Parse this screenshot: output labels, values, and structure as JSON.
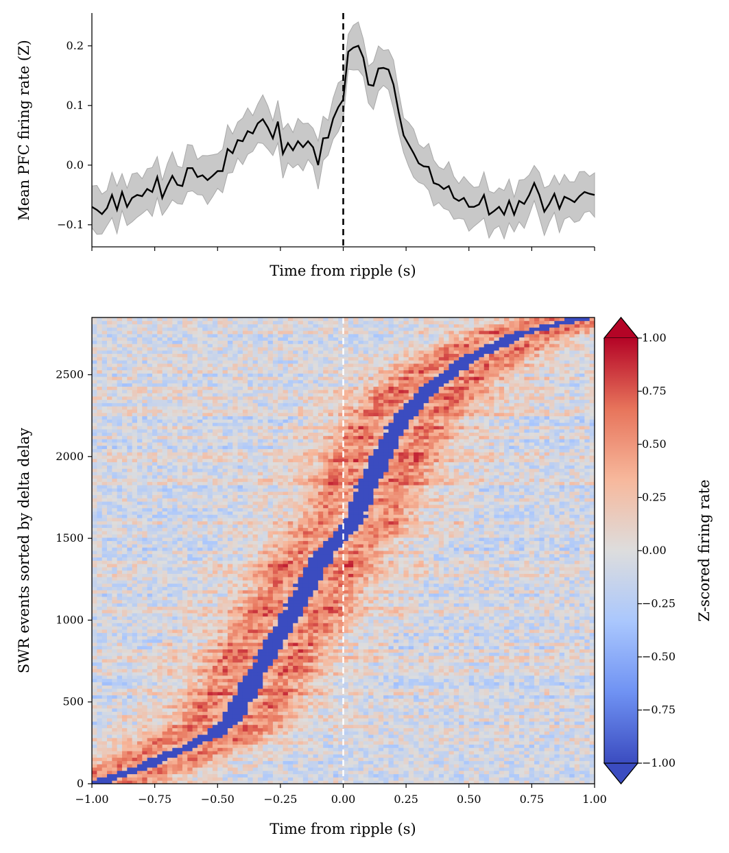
{
  "chart_data": [
    {
      "type": "line",
      "xlabel": "Time from ripple (s)",
      "ylabel": "Mean PFC firing rate (Z)",
      "xlim": [
        -1.0,
        1.0
      ],
      "ylim": [
        -0.137,
        0.255
      ],
      "x_ticks": [
        -1.0,
        -0.75,
        -0.5,
        -0.25,
        0.0,
        0.25,
        0.5,
        0.75,
        1.0
      ],
      "x_tick_labels_visible": false,
      "y_ticks": [
        -0.1,
        0.0,
        0.1,
        0.2
      ],
      "y_tick_labels": [
        "−0.1",
        "0.0",
        "0.1",
        "0.2"
      ],
      "marker_line": {
        "x": 0.0,
        "style": "dashed",
        "color": "#000000"
      },
      "line_color": "#000000",
      "band_color": "#c8c8c8",
      "band_half_width": 0.035,
      "series": [
        {
          "name": "mean",
          "x": [
            -1.0,
            -0.98,
            -0.96,
            -0.94,
            -0.92,
            -0.9,
            -0.88,
            -0.86,
            -0.84,
            -0.82,
            -0.8,
            -0.78,
            -0.76,
            -0.74,
            -0.72,
            -0.7,
            -0.68,
            -0.66,
            -0.64,
            -0.62,
            -0.6,
            -0.58,
            -0.56,
            -0.54,
            -0.52,
            -0.5,
            -0.48,
            -0.46,
            -0.44,
            -0.42,
            -0.4,
            -0.38,
            -0.36,
            -0.34,
            -0.32,
            -0.3,
            -0.28,
            -0.26,
            -0.24,
            -0.22,
            -0.2,
            -0.18,
            -0.16,
            -0.14,
            -0.12,
            -0.1,
            -0.08,
            -0.06,
            -0.04,
            -0.02,
            0.0,
            0.02,
            0.04,
            0.06,
            0.08,
            0.1,
            0.12,
            0.14,
            0.16,
            0.18,
            0.2,
            0.22,
            0.24,
            0.26,
            0.28,
            0.3,
            0.32,
            0.34,
            0.36,
            0.38,
            0.4,
            0.42,
            0.44,
            0.46,
            0.48,
            0.5,
            0.52,
            0.54,
            0.56,
            0.58,
            0.6,
            0.62,
            0.64,
            0.66,
            0.68,
            0.7,
            0.72,
            0.74,
            0.76,
            0.78,
            0.8,
            0.82,
            0.84,
            0.86,
            0.88,
            0.9,
            0.92,
            0.94,
            0.96,
            0.98,
            1.0
          ],
          "y": [
            -0.07,
            -0.075,
            -0.082,
            -0.072,
            -0.05,
            -0.075,
            -0.045,
            -0.07,
            -0.055,
            -0.05,
            -0.052,
            -0.04,
            -0.045,
            -0.02,
            -0.055,
            -0.035,
            -0.018,
            -0.033,
            -0.035,
            -0.005,
            -0.005,
            -0.02,
            -0.017,
            -0.025,
            -0.018,
            -0.01,
            -0.01,
            0.027,
            0.02,
            0.042,
            0.04,
            0.057,
            0.053,
            0.07,
            0.077,
            0.063,
            0.045,
            0.073,
            0.019,
            0.037,
            0.025,
            0.04,
            0.03,
            0.04,
            0.03,
            0.0,
            0.045,
            0.046,
            0.078,
            0.097,
            0.11,
            0.19,
            0.197,
            0.2,
            0.18,
            0.135,
            0.133,
            0.162,
            0.163,
            0.16,
            0.135,
            0.09,
            0.05,
            0.035,
            0.02,
            0.003,
            -0.002,
            -0.003,
            -0.03,
            -0.033,
            -0.04,
            -0.035,
            -0.055,
            -0.06,
            -0.055,
            -0.07,
            -0.07,
            -0.066,
            -0.05,
            -0.083,
            -0.077,
            -0.07,
            -0.083,
            -0.06,
            -0.083,
            -0.06,
            -0.065,
            -0.05,
            -0.03,
            -0.05,
            -0.078,
            -0.065,
            -0.048,
            -0.073,
            -0.053,
            -0.057,
            -0.062,
            -0.052,
            -0.045,
            -0.048,
            -0.05
          ]
        }
      ]
    },
    {
      "type": "heatmap",
      "xlabel": "Time from ripple (s)",
      "ylabel": "SWR events sorted by delta delay",
      "xlim": [
        -1.0,
        1.0
      ],
      "ylim": [
        0,
        2850
      ],
      "x_ticks": [
        -1.0,
        -0.75,
        -0.5,
        -0.25,
        0.0,
        0.25,
        0.5,
        0.75,
        1.0
      ],
      "x_tick_labels": [
        "−1.00",
        "−0.75",
        "−0.50",
        "−0.25",
        "0.00",
        "0.25",
        "0.50",
        "0.75",
        "1.00"
      ],
      "y_ticks": [
        0,
        500,
        1000,
        1500,
        2000,
        2500
      ],
      "y_tick_labels": [
        "0",
        "500",
        "1000",
        "1500",
        "2000",
        "2500"
      ],
      "marker_line": {
        "x": 0.0,
        "style": "dashed",
        "color": "#ffffff"
      },
      "colormap": "coolwarm",
      "colormap_stops": [
        "#3b4cc0",
        "#6f92f3",
        "#aac7fd",
        "#dddddd",
        "#f7b89c",
        "#e7745b",
        "#b40426"
      ],
      "grid_cols": 100,
      "grid_rows": 142,
      "delta_band_points": [
        [
          0,
          -0.99
        ],
        [
          50,
          -0.9
        ],
        [
          100,
          -0.8
        ],
        [
          200,
          -0.66
        ],
        [
          300,
          -0.52
        ],
        [
          400,
          -0.44
        ],
        [
          600,
          -0.37
        ],
        [
          800,
          -0.3
        ],
        [
          1000,
          -0.22
        ],
        [
          1200,
          -0.15
        ],
        [
          1400,
          -0.08
        ],
        [
          1500,
          -0.02
        ],
        [
          1600,
          0.04
        ],
        [
          1800,
          0.09
        ],
        [
          2000,
          0.15
        ],
        [
          2200,
          0.22
        ],
        [
          2400,
          0.33
        ],
        [
          2600,
          0.5
        ],
        [
          2750,
          0.7
        ],
        [
          2850,
          0.95
        ]
      ],
      "delta_band_half_width_s": 0.04,
      "delta_band_value": -1.0,
      "colorbar": {
        "label": "Z-scored firing rate",
        "vmin": -1.0,
        "vmax": 1.0,
        "extend": "both",
        "ticks": [
          -1.0,
          -0.75,
          -0.5,
          -0.25,
          0.0,
          0.25,
          0.5,
          0.75,
          1.0
        ],
        "tick_labels": [
          "−1.00",
          "−0.75",
          "−0.50",
          "−0.25",
          "0.00",
          "0.25",
          "0.50",
          "0.75",
          "1.00"
        ]
      }
    }
  ]
}
